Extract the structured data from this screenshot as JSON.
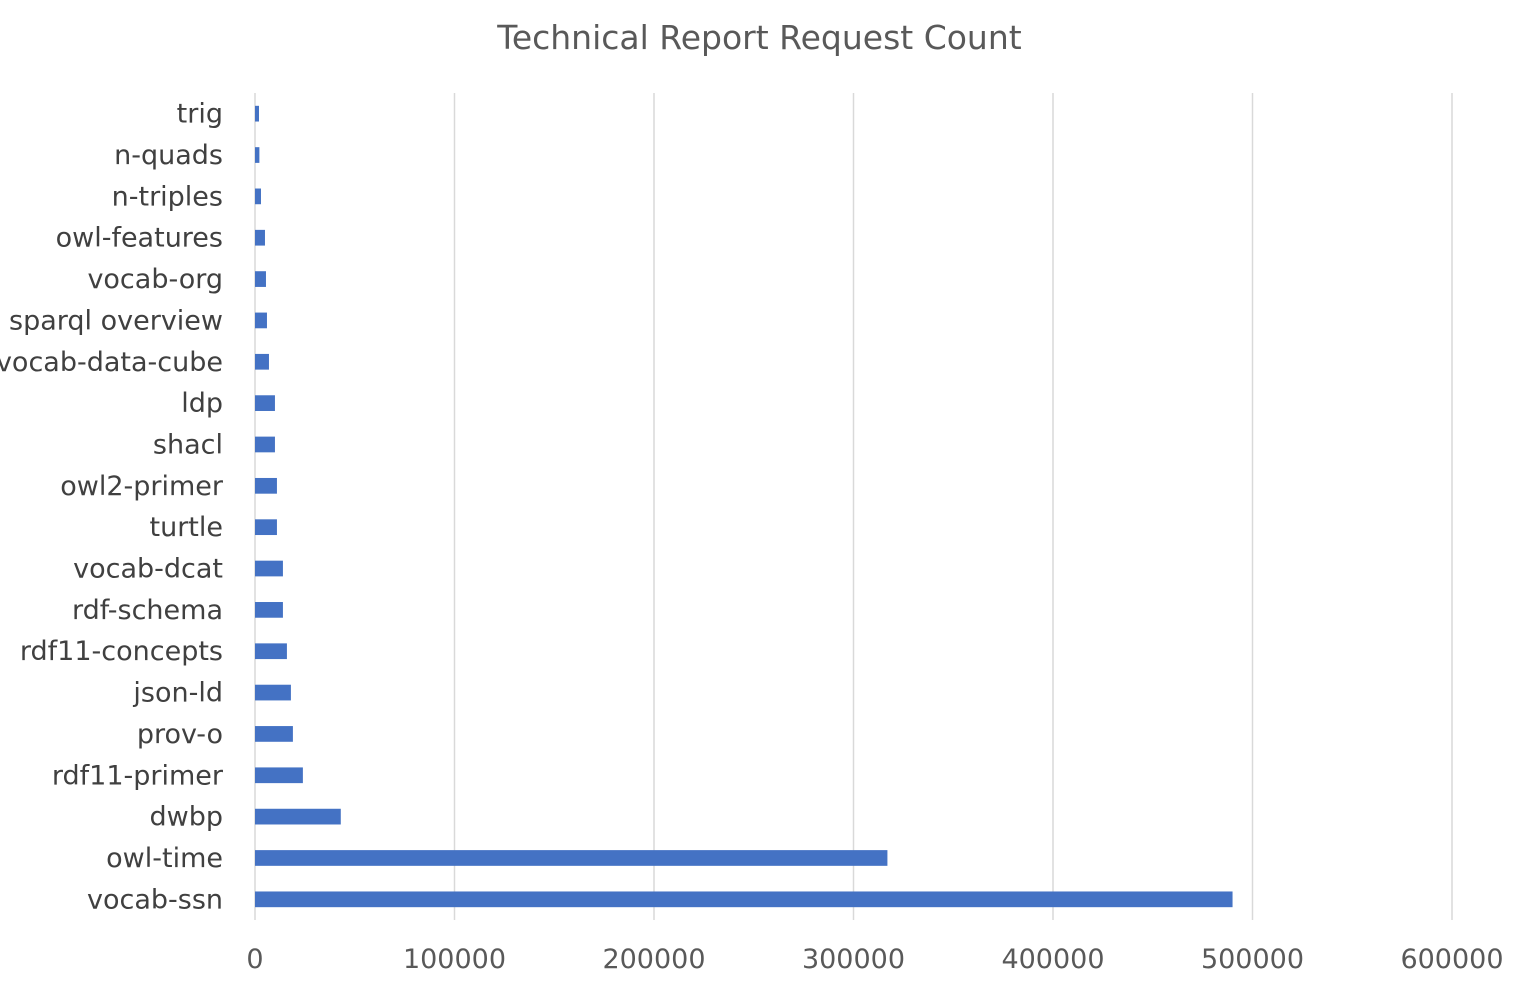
{
  "chart_data": {
    "type": "bar",
    "orientation": "horizontal",
    "title": "Technical Report Request Count",
    "xlabel": "",
    "ylabel": "",
    "xlim": [
      0,
      600000
    ],
    "x_ticks": [
      "0",
      "100000",
      "200000",
      "300000",
      "400000",
      "500000",
      "600000"
    ],
    "grid": "vertical",
    "legend": "none",
    "bar_color": "#4472C4",
    "categories": [
      "trig",
      "n-quads",
      "n-triples",
      "owl-features",
      "vocab-org",
      "sparql overview",
      "vocab-data-cube",
      "ldp",
      "shacl",
      "owl2-primer",
      "turtle",
      "vocab-dcat",
      "rdf-schema",
      "rdf11-concepts",
      "json-ld",
      "prov-o",
      "rdf11-primer",
      "dwbp",
      "owl-time",
      "vocab-ssn"
    ],
    "values": [
      2000,
      2200,
      3000,
      5000,
      5500,
      6000,
      7000,
      10000,
      10000,
      11000,
      11000,
      14000,
      14000,
      16000,
      18000,
      19000,
      24000,
      43000,
      317000,
      490000
    ]
  }
}
